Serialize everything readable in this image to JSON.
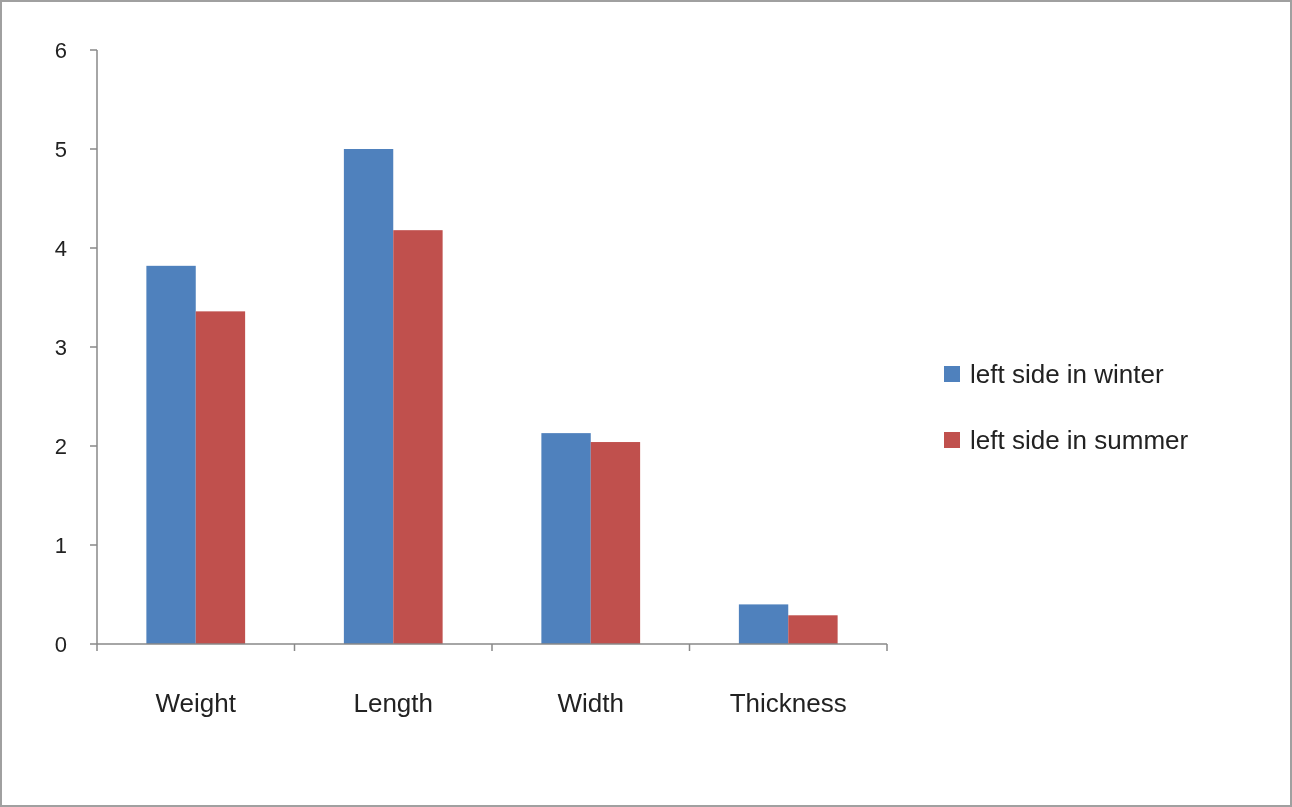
{
  "chart_data": {
    "type": "bar",
    "categories": [
      "Weight",
      "Length",
      "Width",
      "Thickness"
    ],
    "series": [
      {
        "name": "left side in winter",
        "color": "#4f81bd",
        "values": [
          3.82,
          5.0,
          2.13,
          0.4
        ]
      },
      {
        "name": "left side in summer",
        "color": "#c0504d",
        "values": [
          3.36,
          4.18,
          2.04,
          0.29
        ]
      }
    ],
    "ylim": [
      0,
      6
    ],
    "yticks": [
      0,
      1,
      2,
      3,
      4,
      5,
      6
    ],
    "grid": false,
    "legend": "right"
  }
}
